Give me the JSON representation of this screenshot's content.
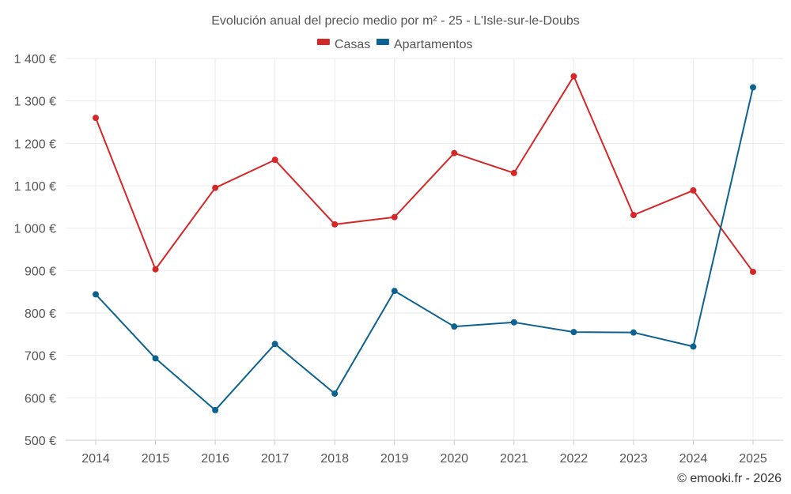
{
  "chart_data": {
    "type": "line",
    "title": "Evolución anual del precio medio por m² - 25 - L'Isle-sur-le-Doubs",
    "categories": [
      "2014",
      "2015",
      "2016",
      "2017",
      "2018",
      "2019",
      "2020",
      "2021",
      "2022",
      "2023",
      "2024",
      "2025"
    ],
    "series": [
      {
        "name": "Casas",
        "color": "#d62728",
        "values": [
          1260,
          903,
          1095,
          1161,
          1009,
          1026,
          1177,
          1130,
          1358,
          1031,
          1089,
          897
        ]
      },
      {
        "name": "Apartamentos",
        "color": "#0c6291",
        "values": [
          844,
          693,
          571,
          727,
          610,
          852,
          768,
          778,
          755,
          754,
          721,
          1332
        ]
      }
    ],
    "ylim": [
      500,
      1400
    ],
    "yticks": [
      500,
      600,
      700,
      800,
      900,
      1000,
      1100,
      1200,
      1300,
      1400
    ],
    "ytick_labels": [
      "500 €",
      "600 €",
      "700 €",
      "800 €",
      "900 €",
      "1 000 €",
      "1 100 €",
      "1 200 €",
      "1 300 €",
      "1 400 €"
    ],
    "xlabel": "",
    "ylabel": "",
    "grid": true,
    "legend_position": "top-center"
  },
  "credit": "© emooki.fr - 2026"
}
